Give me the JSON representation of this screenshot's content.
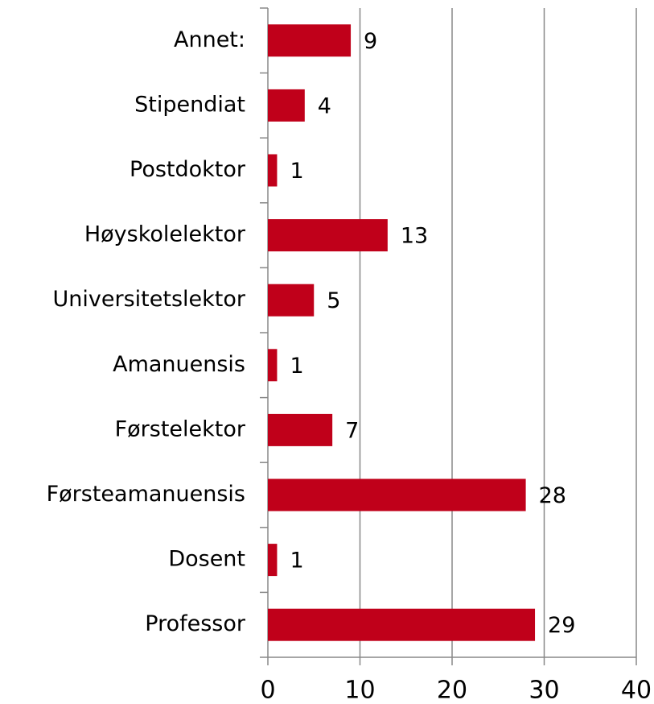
{
  "chart_data": {
    "type": "bar",
    "orientation": "horizontal",
    "categories": [
      "Annet:",
      "Stipendiat",
      "Postdoktor",
      "Høyskolelektor",
      "Universitetslektor",
      "Amanuensis",
      "Førstelektor",
      "Førsteamanuensis",
      "Dosent",
      "Professor"
    ],
    "values": [
      9,
      4,
      1,
      13,
      5,
      1,
      7,
      28,
      1,
      29
    ],
    "color": "#c0001a",
    "xlim": [
      0,
      40
    ],
    "xticks": [
      0,
      10,
      20,
      30,
      40
    ],
    "grid": true
  }
}
